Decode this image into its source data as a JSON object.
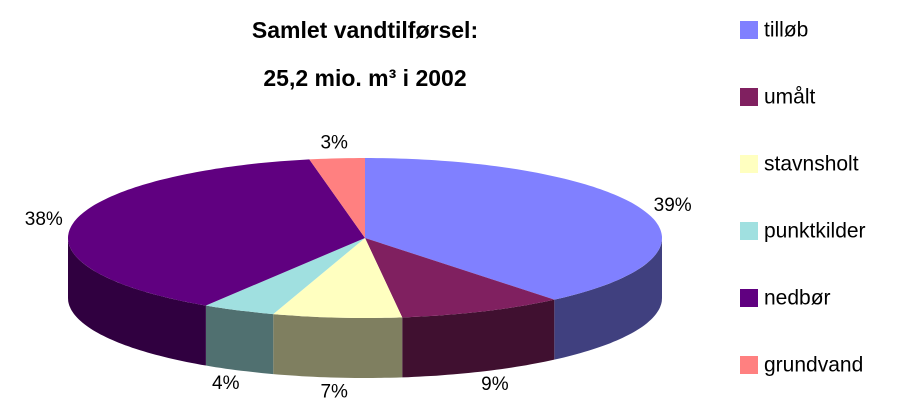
{
  "chart_data": {
    "type": "pie3d",
    "title": [
      "Samlet vandtilførsel:",
      "25,2 mio. m³ i 2002"
    ],
    "categories": [
      "tilløb",
      "umålt",
      "stavnsholt",
      "punktkilder",
      "nedbør",
      "grundvand"
    ],
    "values": [
      39,
      9,
      7,
      4,
      38,
      3
    ],
    "value_labels": [
      "39%",
      "9%",
      "7%",
      "4%",
      "38%",
      "3%"
    ],
    "colors": [
      "#8080ff",
      "#802060",
      "#ffffc0",
      "#a0e0e0",
      "#600080",
      "#ff8080"
    ],
    "legend": "right"
  }
}
